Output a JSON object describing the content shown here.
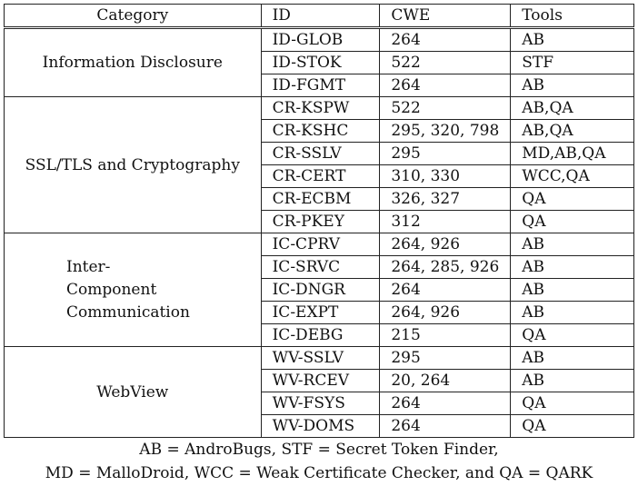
{
  "header": {
    "category": "Category",
    "id": "ID",
    "cwe": "CWE",
    "tools": "Tools"
  },
  "groups": [
    {
      "category": "Information Disclosure",
      "rows": [
        {
          "id": "ID-GLOB",
          "cwe": "264",
          "tools": "AB"
        },
        {
          "id": "ID-STOK",
          "cwe": "522",
          "tools": "STF"
        },
        {
          "id": "ID-FGMT",
          "cwe": "264",
          "tools": "AB"
        }
      ]
    },
    {
      "category": "SSL/TLS and Cryptography",
      "rows": [
        {
          "id": "CR-KSPW",
          "cwe": "522",
          "tools": "AB,QA"
        },
        {
          "id": "CR-KSHC",
          "cwe": "295, 320, 798",
          "tools": "AB,QA"
        },
        {
          "id": "CR-SSLV",
          "cwe": "295",
          "tools": "MD,AB,QA"
        },
        {
          "id": "CR-CERT",
          "cwe": "310, 330",
          "tools": "WCC,QA"
        },
        {
          "id": "CR-ECBM",
          "cwe": "326, 327",
          "tools": "QA"
        },
        {
          "id": "CR-PKEY",
          "cwe": "312",
          "tools": "QA"
        }
      ]
    },
    {
      "category_lines": [
        "Inter-",
        "Component",
        "Communication"
      ],
      "rows": [
        {
          "id": "IC-CPRV",
          "cwe": "264, 926",
          "tools": "AB"
        },
        {
          "id": "IC-SRVC",
          "cwe": "264, 285, 926",
          "tools": "AB"
        },
        {
          "id": "IC-DNGR",
          "cwe": "264",
          "tools": "AB"
        },
        {
          "id": "IC-EXPT",
          "cwe": "264, 926",
          "tools": "AB"
        },
        {
          "id": "IC-DEBG",
          "cwe": "215",
          "tools": "QA"
        }
      ]
    },
    {
      "category": "WebView",
      "rows": [
        {
          "id": "WV-SSLV",
          "cwe": "295",
          "tools": "AB"
        },
        {
          "id": "WV-RCEV",
          "cwe": "20, 264",
          "tools": "AB"
        },
        {
          "id": "WV-FSYS",
          "cwe": "264",
          "tools": "QA"
        },
        {
          "id": "WV-DOMS",
          "cwe": "264",
          "tools": "QA"
        }
      ]
    }
  ],
  "legend": {
    "line1": "AB = AndroBugs, STF = Secret Token Finder,",
    "line2": "MD = MalloDroid, WCC = Weak Certificate Checker, and QA = QARK"
  }
}
